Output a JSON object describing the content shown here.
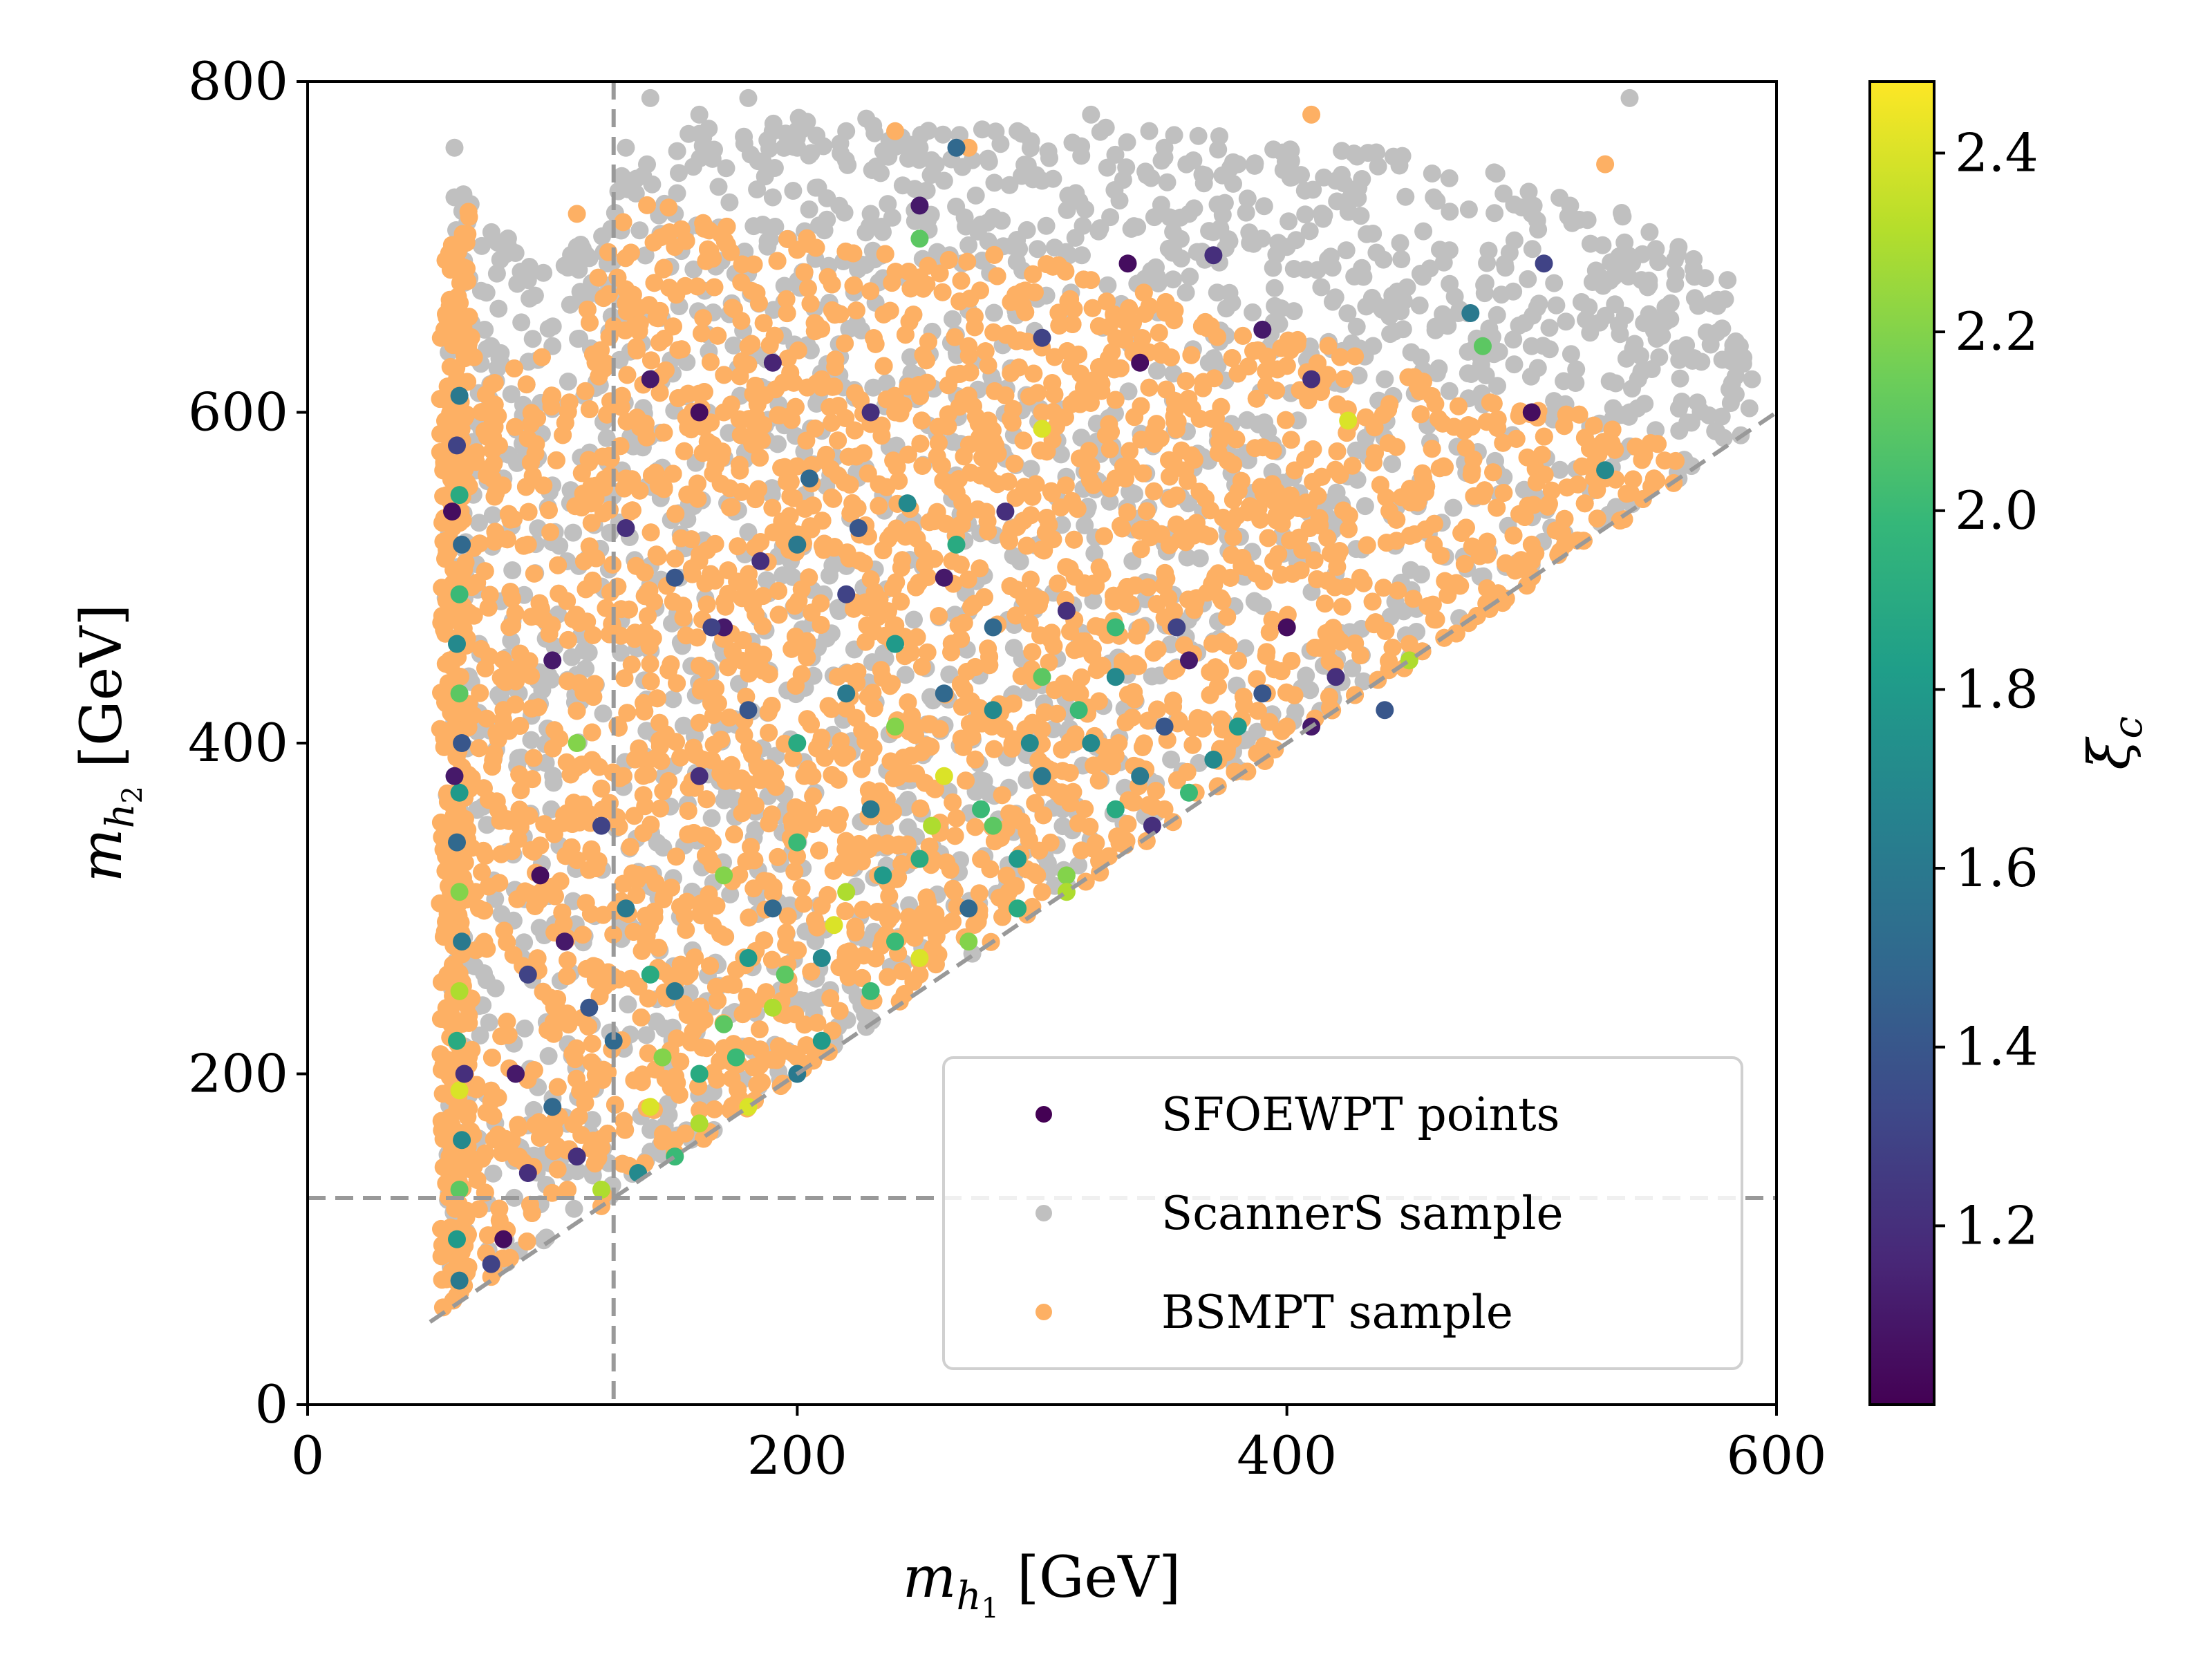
{
  "chart_data": {
    "type": "scatter",
    "title": "",
    "xlabel": "m_h1 [GeV]",
    "ylabel": "m_h2 [GeV]",
    "xlabel_parts": {
      "main": "m",
      "sub": "h",
      "subsub": "1",
      "unit": " [GeV]"
    },
    "ylabel_parts": {
      "main": "m",
      "sub": "h",
      "subsub": "2",
      "unit": " [GeV]"
    },
    "xlim": [
      0,
      600
    ],
    "ylim": [
      0,
      800
    ],
    "xticks": [
      0,
      200,
      400,
      600
    ],
    "yticks": [
      0,
      200,
      400,
      600,
      800
    ],
    "xtick_labels": [
      "0",
      "200",
      "400",
      "600"
    ],
    "ytick_labels": [
      "0",
      "200",
      "400",
      "600",
      "800"
    ],
    "grid": false,
    "legend_position": "lower-right",
    "reference_lines": [
      {
        "kind": "vertical",
        "x": 125,
        "style": "dashed",
        "color": "#999999"
      },
      {
        "kind": "horizontal",
        "y": 125,
        "style": "dashed",
        "color": "#999999"
      },
      {
        "kind": "line",
        "from": [
          50,
          50
        ],
        "to": [
          600,
          600
        ],
        "style": "dashed",
        "color": "#999999"
      }
    ],
    "series": [
      {
        "name": "ScannerS sample",
        "color": "#c0c0c0",
        "envelope_note_hidden": true,
        "points_sample": [
          [
            60,
            730
          ],
          [
            60,
            760
          ],
          [
            75,
            640
          ],
          [
            90,
            680
          ],
          [
            110,
            700
          ],
          [
            130,
            760
          ],
          [
            140,
            790
          ],
          [
            160,
            780
          ],
          [
            180,
            790
          ],
          [
            200,
            760
          ],
          [
            220,
            770
          ],
          [
            250,
            760
          ],
          [
            290,
            770
          ],
          [
            320,
            780
          ],
          [
            350,
            760
          ],
          [
            380,
            750
          ],
          [
            420,
            740
          ],
          [
            460,
            730
          ],
          [
            500,
            720
          ],
          [
            540,
            790
          ],
          [
            560,
            700
          ],
          [
            580,
            680
          ],
          [
            585,
            640
          ],
          [
            590,
            620
          ],
          [
            560,
            560
          ],
          [
            540,
            600
          ],
          [
            500,
            640
          ],
          [
            470,
            660
          ],
          [
            440,
            620
          ],
          [
            400,
            700
          ],
          [
            360,
            720
          ],
          [
            300,
            740
          ],
          [
            260,
            740
          ],
          [
            230,
            720
          ],
          [
            190,
            730
          ],
          [
            150,
            720
          ],
          [
            120,
            670
          ],
          [
            100,
            640
          ],
          [
            80,
            560
          ],
          [
            70,
            460
          ]
        ]
      },
      {
        "name": "BSMPT sample",
        "color": "#fdb064",
        "points_sample": [
          [
            60,
            700
          ],
          [
            62,
            650
          ],
          [
            60,
            560
          ],
          [
            58,
            450
          ],
          [
            62,
            350
          ],
          [
            60,
            250
          ],
          [
            58,
            150
          ],
          [
            60,
            80
          ],
          [
            70,
            300
          ],
          [
            80,
            420
          ],
          [
            90,
            520
          ],
          [
            100,
            610
          ],
          [
            110,
            720
          ],
          [
            130,
            560
          ],
          [
            150,
            700
          ],
          [
            180,
            640
          ],
          [
            210,
            620
          ],
          [
            240,
            600
          ],
          [
            270,
            640
          ],
          [
            300,
            600
          ],
          [
            330,
            560
          ],
          [
            360,
            530
          ],
          [
            400,
            540
          ],
          [
            430,
            500
          ],
          [
            460,
            520
          ],
          [
            500,
            520
          ],
          [
            530,
            560
          ],
          [
            550,
            560
          ],
          [
            410,
            780
          ],
          [
            270,
            760
          ],
          [
            240,
            770
          ],
          [
            530,
            750
          ],
          [
            120,
            120
          ],
          [
            150,
            160
          ],
          [
            200,
            210
          ],
          [
            250,
            260
          ],
          [
            300,
            310
          ],
          [
            350,
            360
          ],
          [
            400,
            410
          ],
          [
            450,
            460
          ],
          [
            500,
            510
          ],
          [
            550,
            560
          ],
          [
            320,
            680
          ],
          [
            170,
            600
          ]
        ]
      },
      {
        "name": "SFOEWPT points",
        "color": "#440154",
        "colored_by": "xi_c",
        "points": [
          [
            62,
            610,
            1.6
          ],
          [
            61,
            580,
            1.3
          ],
          [
            62,
            550,
            1.9
          ],
          [
            63,
            520,
            1.5
          ],
          [
            62,
            490,
            2.0
          ],
          [
            61,
            460,
            1.7
          ],
          [
            62,
            430,
            2.1
          ],
          [
            63,
            400,
            1.4
          ],
          [
            62,
            370,
            1.8
          ],
          [
            61,
            340,
            1.5
          ],
          [
            62,
            310,
            2.2
          ],
          [
            63,
            280,
            1.6
          ],
          [
            62,
            250,
            2.3
          ],
          [
            61,
            220,
            1.9
          ],
          [
            62,
            190,
            2.4
          ],
          [
            63,
            160,
            1.7
          ],
          [
            62,
            130,
            2.1
          ],
          [
            61,
            100,
            1.8
          ],
          [
            62,
            75,
            1.6
          ],
          [
            60,
            380,
            1.1
          ],
          [
            64,
            200,
            1.2
          ],
          [
            59,
            540,
            1.05
          ],
          [
            140,
            620,
            1.1
          ],
          [
            160,
            600,
            1.05
          ],
          [
            190,
            630,
            1.15
          ],
          [
            230,
            600,
            1.2
          ],
          [
            265,
            760,
            1.5
          ],
          [
            250,
            725,
            1.1
          ],
          [
            250,
            705,
            2.1
          ],
          [
            335,
            690,
            1.05
          ],
          [
            370,
            695,
            1.2
          ],
          [
            505,
            690,
            1.3
          ],
          [
            475,
            660,
            1.6
          ],
          [
            480,
            640,
            2.1
          ],
          [
            500,
            600,
            1.05
          ],
          [
            530,
            565,
            1.7
          ],
          [
            425,
            595,
            2.4
          ],
          [
            300,
            645,
            1.3
          ],
          [
            340,
            630,
            1.05
          ],
          [
            390,
            650,
            1.1
          ],
          [
            410,
            620,
            1.2
          ],
          [
            300,
            590,
            2.4
          ],
          [
            130,
            530,
            1.2
          ],
          [
            150,
            500,
            1.4
          ],
          [
            170,
            470,
            1.1
          ],
          [
            200,
            520,
            1.6
          ],
          [
            220,
            490,
            1.3
          ],
          [
            240,
            460,
            1.8
          ],
          [
            260,
            500,
            1.1
          ],
          [
            280,
            470,
            1.5
          ],
          [
            310,
            480,
            1.2
          ],
          [
            330,
            440,
            1.7
          ],
          [
            360,
            450,
            1.1
          ],
          [
            390,
            430,
            1.4
          ],
          [
            420,
            440,
            1.2
          ],
          [
            450,
            450,
            2.3
          ],
          [
            400,
            470,
            1.05
          ],
          [
            100,
            450,
            1.1
          ],
          [
            110,
            400,
            2.2
          ],
          [
            95,
            320,
            1.05
          ],
          [
            90,
            260,
            1.3
          ],
          [
            85,
            200,
            1.1
          ],
          [
            100,
            180,
            1.5
          ],
          [
            110,
            150,
            1.2
          ],
          [
            120,
            130,
            2.3
          ],
          [
            135,
            140,
            1.7
          ],
          [
            150,
            150,
            2.0
          ],
          [
            140,
            180,
            2.4
          ],
          [
            160,
            200,
            1.9
          ],
          [
            150,
            250,
            1.6
          ],
          [
            170,
            230,
            2.1
          ],
          [
            180,
            270,
            1.8
          ],
          [
            170,
            320,
            2.2
          ],
          [
            190,
            300,
            1.5
          ],
          [
            200,
            340,
            2.0
          ],
          [
            210,
            270,
            1.7
          ],
          [
            220,
            310,
            2.3
          ],
          [
            230,
            360,
            1.6
          ],
          [
            240,
            280,
            2.0
          ],
          [
            250,
            330,
            1.9
          ],
          [
            260,
            380,
            2.4
          ],
          [
            270,
            300,
            1.5
          ],
          [
            280,
            350,
            2.1
          ],
          [
            290,
            330,
            1.8
          ],
          [
            300,
            380,
            1.6
          ],
          [
            310,
            320,
            2.2
          ],
          [
            320,
            400,
            1.7
          ],
          [
            330,
            360,
            1.9
          ],
          [
            340,
            380,
            1.6
          ],
          [
            350,
            410,
            1.4
          ],
          [
            360,
            370,
            2.0
          ],
          [
            160,
            380,
            1.2
          ],
          [
            180,
            420,
            1.4
          ],
          [
            200,
            400,
            1.9
          ],
          [
            220,
            430,
            1.6
          ],
          [
            240,
            410,
            2.2
          ],
          [
            260,
            430,
            1.5
          ],
          [
            280,
            420,
            1.7
          ],
          [
            300,
            440,
            2.1
          ],
          [
            190,
            240,
            2.3
          ],
          [
            210,
            220,
            1.8
          ],
          [
            230,
            250,
            2.0
          ],
          [
            250,
            270,
            2.4
          ],
          [
            270,
            280,
            2.2
          ],
          [
            290,
            300,
            1.9
          ],
          [
            310,
            310,
            2.3
          ],
          [
            200,
            200,
            1.6
          ],
          [
            180,
            180,
            2.4
          ],
          [
            160,
            170,
            2.3
          ],
          [
            175,
            210,
            2.0
          ],
          [
            195,
            260,
            2.1
          ],
          [
            215,
            290,
            2.4
          ],
          [
            235,
            320,
            1.8
          ],
          [
            255,
            350,
            2.3
          ],
          [
            275,
            360,
            2.0
          ],
          [
            295,
            400,
            1.7
          ],
          [
            315,
            420,
            2.0
          ],
          [
            120,
            350,
            1.3
          ],
          [
            130,
            300,
            1.6
          ],
          [
            140,
            260,
            1.9
          ],
          [
            125,
            220,
            1.5
          ],
          [
            145,
            210,
            2.2
          ],
          [
            105,
            280,
            1.1
          ],
          [
            115,
            240,
            1.4
          ],
          [
            90,
            140,
            1.2
          ],
          [
            80,
            100,
            1.05
          ],
          [
            75,
            85,
            1.3
          ],
          [
            165,
            470,
            1.3
          ],
          [
            205,
            560,
            1.5
          ],
          [
            245,
            545,
            1.7
          ],
          [
            185,
            510,
            1.2
          ],
          [
            225,
            530,
            1.4
          ],
          [
            265,
            520,
            1.9
          ],
          [
            285,
            540,
            1.2
          ],
          [
            330,
            470,
            2.0
          ],
          [
            355,
            470,
            1.3
          ],
          [
            380,
            410,
            1.8
          ],
          [
            410,
            410,
            1.1
          ],
          [
            440,
            420,
            1.4
          ],
          [
            370,
            390,
            1.7
          ],
          [
            345,
            350,
            1.2
          ]
        ]
      }
    ],
    "colorbar": {
      "label": "ξ_c",
      "label_main": "ξ",
      "label_sub": "c",
      "min": 1.0,
      "max": 2.48,
      "ticks": [
        1.2,
        1.4,
        1.6,
        1.8,
        2.0,
        2.2,
        2.4
      ],
      "tick_labels": [
        "1.2",
        "1.4",
        "1.6",
        "1.8",
        "2.0",
        "2.2",
        "2.4"
      ],
      "colormap": "viridis",
      "stops": [
        "#440154",
        "#482878",
        "#3e4989",
        "#31688e",
        "#26828e",
        "#1f9e89",
        "#35b779",
        "#6ece58",
        "#b5de2b",
        "#fde725"
      ]
    }
  }
}
